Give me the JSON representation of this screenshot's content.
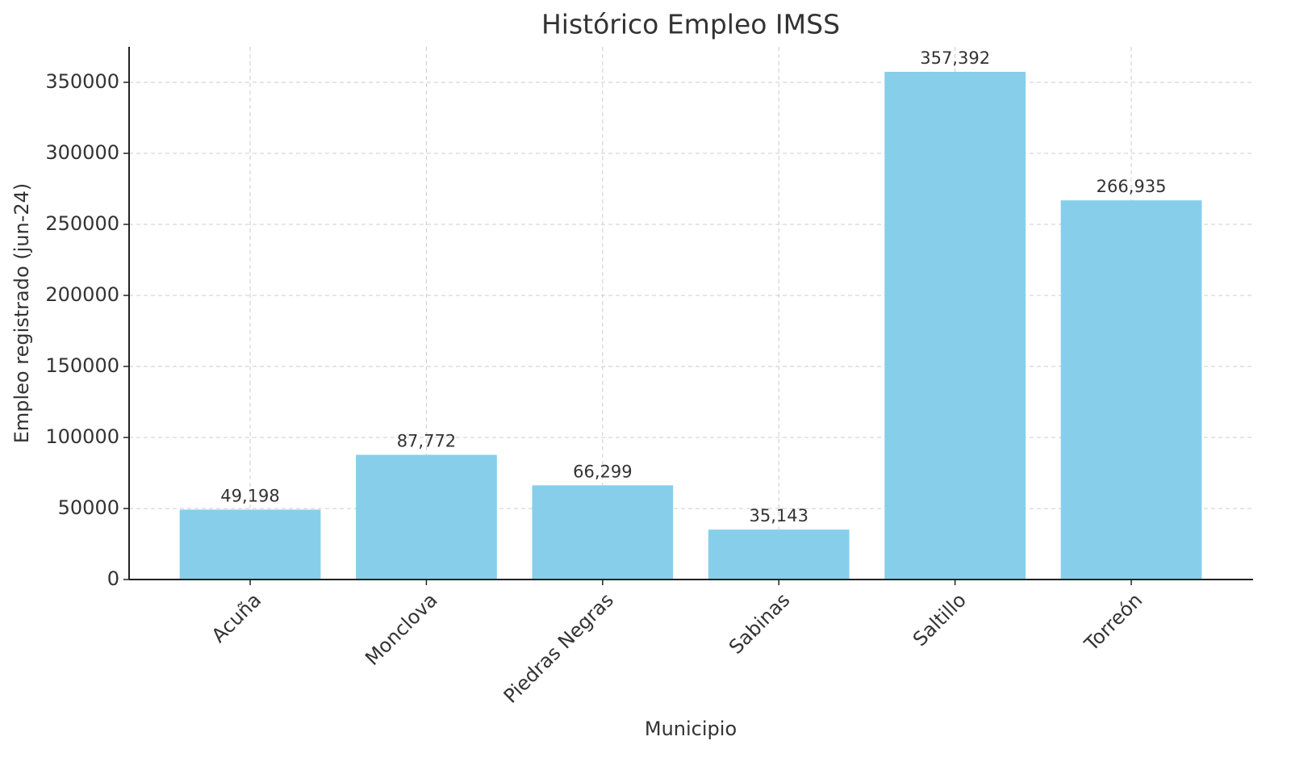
{
  "chart_data": {
    "type": "bar",
    "title": "Histórico Empleo IMSS",
    "x_label": "Municipio",
    "y_label": "Empleo registrado (jun-24)",
    "categories": [
      "Acuña",
      "Monclova",
      "Piedras Negras",
      "Sabinas",
      "Saltillo",
      "Torreón"
    ],
    "values": [
      49198,
      87772,
      66299,
      35143,
      357392,
      266935
    ],
    "value_labels": [
      "49,198",
      "87,772",
      "66,299",
      "35,143",
      "357,392",
      "266,935"
    ],
    "color": "#87ceeb",
    "ylim": [
      0,
      375000
    ],
    "yticks": [
      0,
      50000,
      100000,
      150000,
      200000,
      250000,
      300000,
      350000
    ],
    "grid": true
  }
}
